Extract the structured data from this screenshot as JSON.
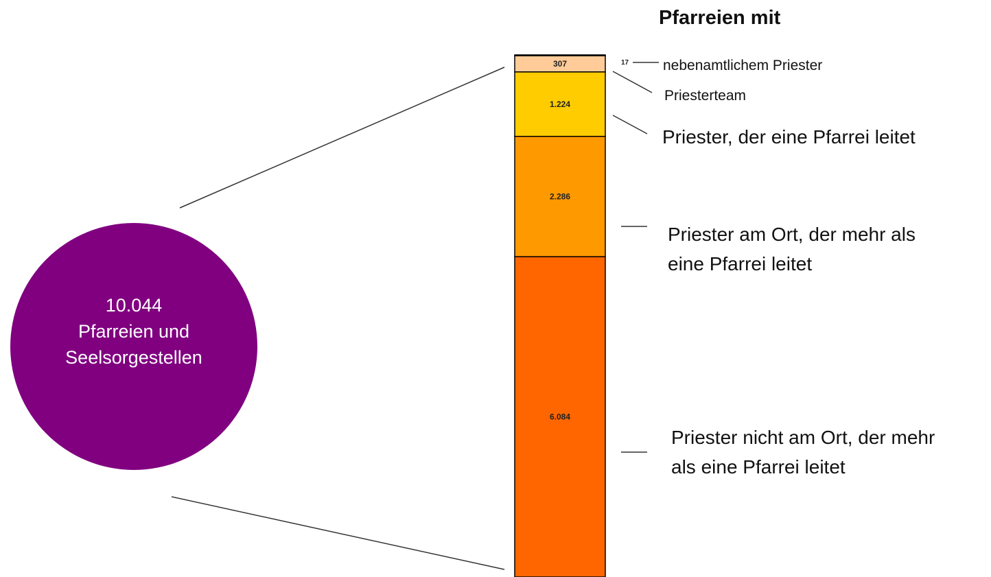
{
  "chart_data": {
    "type": "bar",
    "stacked": true,
    "title": "Pfarreien mit",
    "total": {
      "value": 10044,
      "label": "10.044",
      "text": "Pfarreien und Seelsorgestellen",
      "color": "#800080"
    },
    "categories": [
      "nebenamtlichem Priester",
      "Priesterteam",
      "Priester, der eine Pfarrei leitet",
      "Priester am Ort, der mehr als eine Pfarrei leitet",
      "Priester nicht am Ort, der mehr als eine Pfarrei leitet"
    ],
    "values": [
      17,
      307,
      1224,
      2286,
      6084
    ],
    "value_labels": [
      "17",
      "307",
      "1.224",
      "2.286",
      "6.084"
    ],
    "colors": [
      "#000000",
      "#ffcc99",
      "#ffcc00",
      "#ff9900",
      "#ff6600"
    ]
  }
}
